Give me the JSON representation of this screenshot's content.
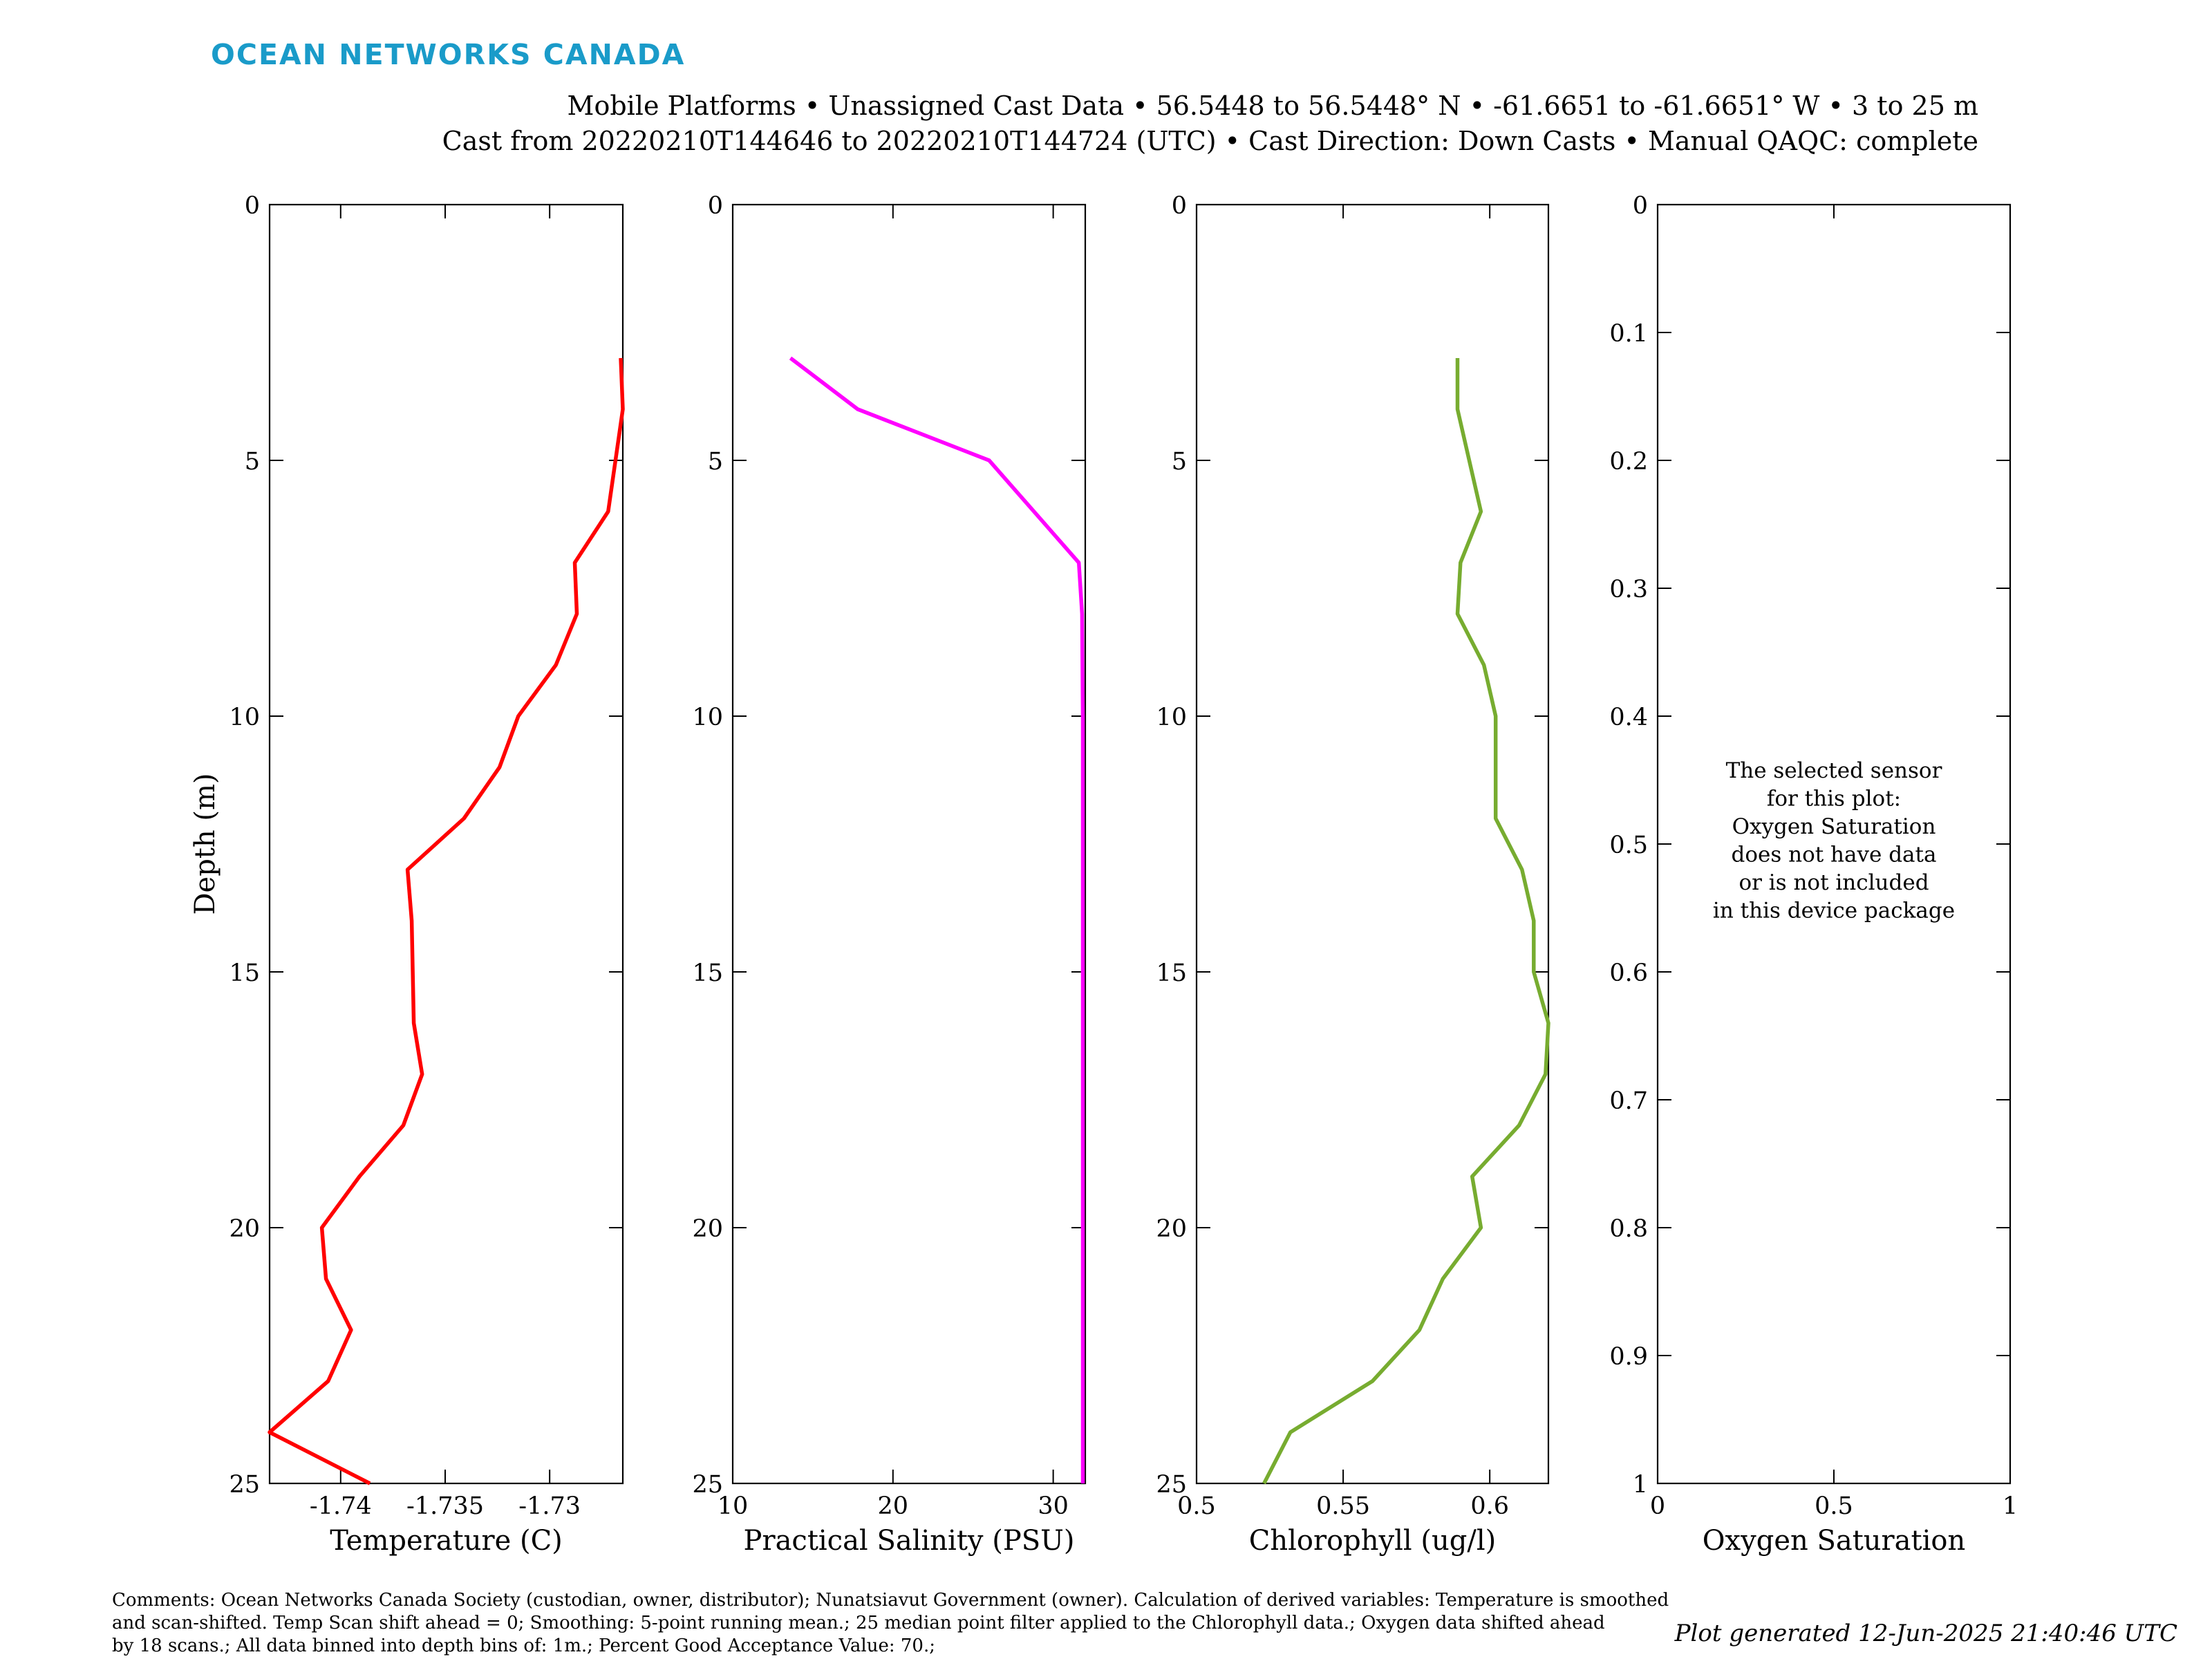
{
  "header": {
    "logo_text": "OCEAN NETWORKS CANADA",
    "title_line1": "Mobile Platforms • Unassigned Cast Data • 56.5448 to 56.5448° N • -61.6651 to -61.6651° W • 3 to 25 m",
    "title_line2": "Cast from 20220210T144646 to 20220210T144724 (UTC) • Cast Direction: Down Casts • Manual QAQC: complete"
  },
  "footer": {
    "comments_line1": "Comments: Ocean Networks Canada Society (custodian, owner, distributor); Nunatsiavut Government (owner). Calculation of derived variables: Temperature is smoothed",
    "comments_line2": "and scan-shifted. Temp Scan shift ahead = 0; Smoothing: 5-point running mean.; 25 median point filter applied to the Chlorophyll data.; Oxygen data shifted ahead",
    "comments_line3": "by 18 scans.; All data binned into depth bins of: 1m.; Percent Good Acceptance Value: 70.;",
    "generated": "Plot generated 12-Jun-2025 21:40:46 UTC"
  },
  "no_data_message": [
    "The selected sensor",
    "for this plot:",
    "Oxygen Saturation",
    "does not have data",
    "or is not included",
    "in this device package"
  ],
  "chart_data": [
    {
      "type": "line",
      "ylabel": "Depth (m)",
      "xlabel": "Temperature (C)",
      "color": "#ff0000",
      "xlim": [
        -1.7434,
        -1.7265
      ],
      "ylim": [
        0,
        25
      ],
      "xticks": [
        -1.74,
        -1.735,
        -1.73
      ],
      "xtick_labels": [
        "-1.74",
        "-1.735",
        "-1.73"
      ],
      "yticks": [
        0,
        5,
        10,
        15,
        20,
        25
      ],
      "ytick_labels": [
        "0",
        "5",
        "10",
        "15",
        "20",
        "25"
      ],
      "series": [
        {
          "x": [
            -1.7266,
            -1.7265,
            -1.7272,
            -1.7288,
            -1.7287,
            -1.7297,
            -1.7315,
            -1.7324,
            -1.7341,
            -1.7368,
            -1.7366,
            -1.7365,
            -1.7361,
            -1.737,
            -1.7391,
            -1.7409,
            -1.7407,
            -1.7395,
            -1.7406,
            -1.7434,
            -1.7386
          ],
          "y": [
            3,
            4,
            6,
            7,
            8,
            9,
            10,
            11,
            12,
            13,
            14,
            16,
            17,
            18,
            19,
            20,
            21,
            22,
            23,
            24,
            25
          ]
        }
      ]
    },
    {
      "type": "line",
      "xlabel": "Practical Salinity (PSU)",
      "color": "#ff00ff",
      "xlim": [
        10,
        32
      ],
      "ylim": [
        0,
        25
      ],
      "xticks": [
        10,
        20,
        30
      ],
      "xtick_labels": [
        "10",
        "20",
        "30"
      ],
      "yticks": [
        0,
        5,
        10,
        15,
        20,
        25
      ],
      "ytick_labels": [
        "0",
        "5",
        "10",
        "15",
        "20",
        "25"
      ],
      "series": [
        {
          "x": [
            13.6,
            17.8,
            26.0,
            31.6,
            31.8,
            31.85,
            31.85,
            31.85,
            31.85,
            31.85,
            31.85,
            31.85
          ],
          "y": [
            3,
            4,
            5,
            7,
            8,
            10,
            13,
            15,
            18,
            20,
            23,
            25
          ]
        }
      ]
    },
    {
      "type": "line",
      "xlabel": "Chlorophyll (ug/l)",
      "color": "#77ac30",
      "xlim": [
        0.5,
        0.62
      ],
      "ylim": [
        0,
        25
      ],
      "xticks": [
        0.5,
        0.55,
        0.6
      ],
      "xtick_labels": [
        "0.5",
        "0.55",
        "0.6"
      ],
      "yticks": [
        0,
        5,
        10,
        15,
        20,
        25
      ],
      "ytick_labels": [
        "0",
        "5",
        "10",
        "15",
        "20",
        "25"
      ],
      "series": [
        {
          "x": [
            0.589,
            0.589,
            0.597,
            0.59,
            0.589,
            0.598,
            0.602,
            0.602,
            0.602,
            0.611,
            0.615,
            0.615,
            0.62,
            0.619,
            0.61,
            0.594,
            0.597,
            0.584,
            0.576,
            0.56,
            0.532,
            0.523
          ],
          "y": [
            3,
            4,
            6,
            7,
            8,
            9,
            10,
            11,
            12,
            13,
            14,
            15,
            16,
            17,
            18,
            19,
            20,
            21,
            22,
            23,
            24,
            25
          ]
        }
      ]
    },
    {
      "type": "line",
      "xlabel": "Oxygen Saturation",
      "color": "#0000ff",
      "xlim": [
        0,
        1
      ],
      "ylim": [
        0,
        1
      ],
      "xticks": [
        0,
        0.5,
        1
      ],
      "xtick_labels": [
        "0",
        "0.5",
        "1"
      ],
      "yticks": [
        0,
        0.1,
        0.2,
        0.3,
        0.4,
        0.5,
        0.6,
        0.7,
        0.8,
        0.9,
        1
      ],
      "ytick_labels": [
        "0",
        "0.1",
        "0.2",
        "0.3",
        "0.4",
        "0.5",
        "0.6",
        "0.7",
        "0.8",
        "0.9",
        "1"
      ],
      "series": []
    }
  ]
}
